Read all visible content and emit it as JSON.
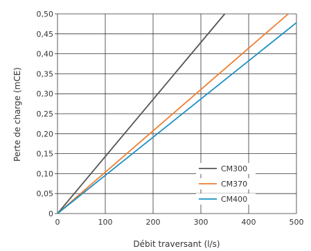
{
  "chart_data": {
    "type": "line",
    "title": "",
    "xlabel": "Débit traversant (l/s)",
    "ylabel": "Perte de charge (mCE)",
    "xlim": [
      0,
      500
    ],
    "ylim": [
      0,
      0.5
    ],
    "x_ticks": [
      "0",
      "100",
      "200",
      "300",
      "400",
      "500"
    ],
    "y_ticks": [
      "0",
      "0,05",
      "0,10",
      "0,15",
      "0,20",
      "0,25",
      "0,30",
      "0,35",
      "0,40",
      "0,45",
      "0,50"
    ],
    "grid": true,
    "legend_position": "bottom-right",
    "series": [
      {
        "name": "CM300",
        "color": "#555555",
        "x": [
          0,
          350
        ],
        "y": [
          0,
          0.5
        ]
      },
      {
        "name": "CM370",
        "color": "#ee7d31",
        "x": [
          0,
          483
        ],
        "y": [
          0,
          0.5
        ]
      },
      {
        "name": "CM400",
        "color": "#1a8fc4",
        "x": [
          0,
          500
        ],
        "y": [
          0,
          0.478
        ]
      }
    ]
  }
}
